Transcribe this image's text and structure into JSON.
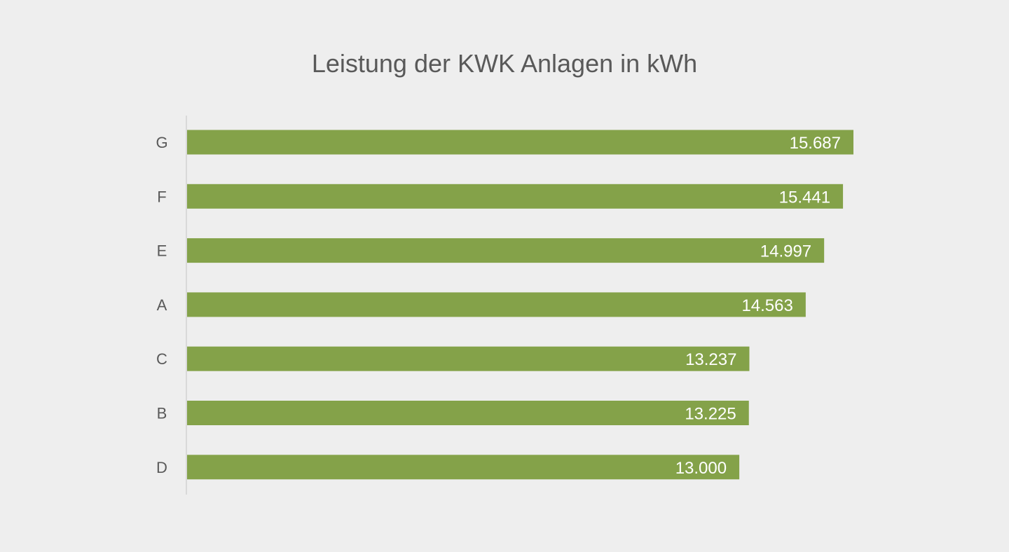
{
  "chart_data": {
    "type": "bar",
    "orientation": "horizontal",
    "title": "Leistung der KWK Anlagen in kWh",
    "xlabel": "",
    "ylabel": "",
    "categories": [
      "G",
      "F",
      "E",
      "A",
      "C",
      "B",
      "D"
    ],
    "values": [
      15687,
      15441,
      14997,
      14563,
      13237,
      13225,
      13000
    ],
    "value_labels": [
      "15.687",
      "15.441",
      "14.997",
      "14.563",
      "13.237",
      "13.225",
      "13.000"
    ],
    "xlim": [
      0,
      15687
    ],
    "grid": false,
    "legend": "none",
    "bar_color": "#84a249",
    "background_color": "#eeeeee"
  }
}
